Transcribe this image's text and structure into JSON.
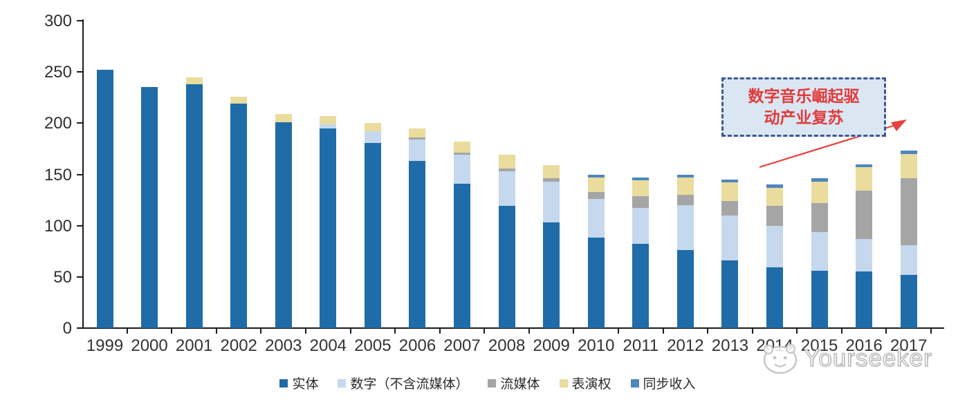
{
  "chart_data": {
    "type": "bar",
    "stacked": true,
    "title": "",
    "xlabel": "",
    "ylabel": "",
    "ylim": [
      0,
      300
    ],
    "yticks": [
      0,
      50,
      100,
      150,
      200,
      250,
      300
    ],
    "grid": false,
    "legend_position": "bottom",
    "categories": [
      "1999",
      "2000",
      "2001",
      "2002",
      "2003",
      "2004",
      "2005",
      "2006",
      "2007",
      "2008",
      "2009",
      "2010",
      "2011",
      "2012",
      "2013",
      "2014",
      "2015",
      "2016",
      "2017"
    ],
    "series": [
      {
        "key": "physical",
        "name": "实体",
        "color": "#1f6ca8",
        "values": [
          252,
          235,
          238,
          219,
          201,
          195,
          181,
          163,
          141,
          119,
          103,
          88,
          82,
          76,
          66,
          59,
          56,
          55,
          52
        ]
      },
      {
        "key": "digital-excl-streaming",
        "name": "数字（不含流媒体）",
        "color": "#c5d8ee",
        "values": [
          0,
          0,
          0,
          0,
          0,
          4,
          11,
          21,
          28,
          34,
          40,
          38,
          35,
          44,
          44,
          41,
          38,
          32,
          29
        ]
      },
      {
        "key": "streaming",
        "name": "流媒体",
        "color": "#a5a5a5",
        "values": [
          0,
          0,
          0,
          0,
          0,
          0,
          0,
          2,
          2,
          3,
          3,
          7,
          12,
          10,
          14,
          19,
          28,
          47,
          65
        ]
      },
      {
        "key": "performance-rights",
        "name": "表演权",
        "color": "#eadc9d",
        "values": [
          0,
          0,
          7,
          7,
          8,
          8,
          8,
          9,
          11,
          13,
          13,
          14,
          15,
          17,
          18,
          18,
          21,
          23,
          24
        ]
      },
      {
        "key": "sync",
        "name": "同步收入",
        "color": "#4e86c0",
        "values": [
          0,
          0,
          0,
          0,
          0,
          0,
          0,
          0,
          0,
          0,
          0,
          3,
          3,
          3,
          3,
          3,
          3,
          3,
          3
        ]
      }
    ]
  },
  "annotation": {
    "line1": "数字音乐崛起驱",
    "line2": "动产业复苏",
    "box_fill": "#dbe6f3",
    "box_border": "#3a5894",
    "text_color": "#e03a3a",
    "arrow_color": "#e8403c"
  },
  "watermark": {
    "text": "Yourseeker"
  }
}
